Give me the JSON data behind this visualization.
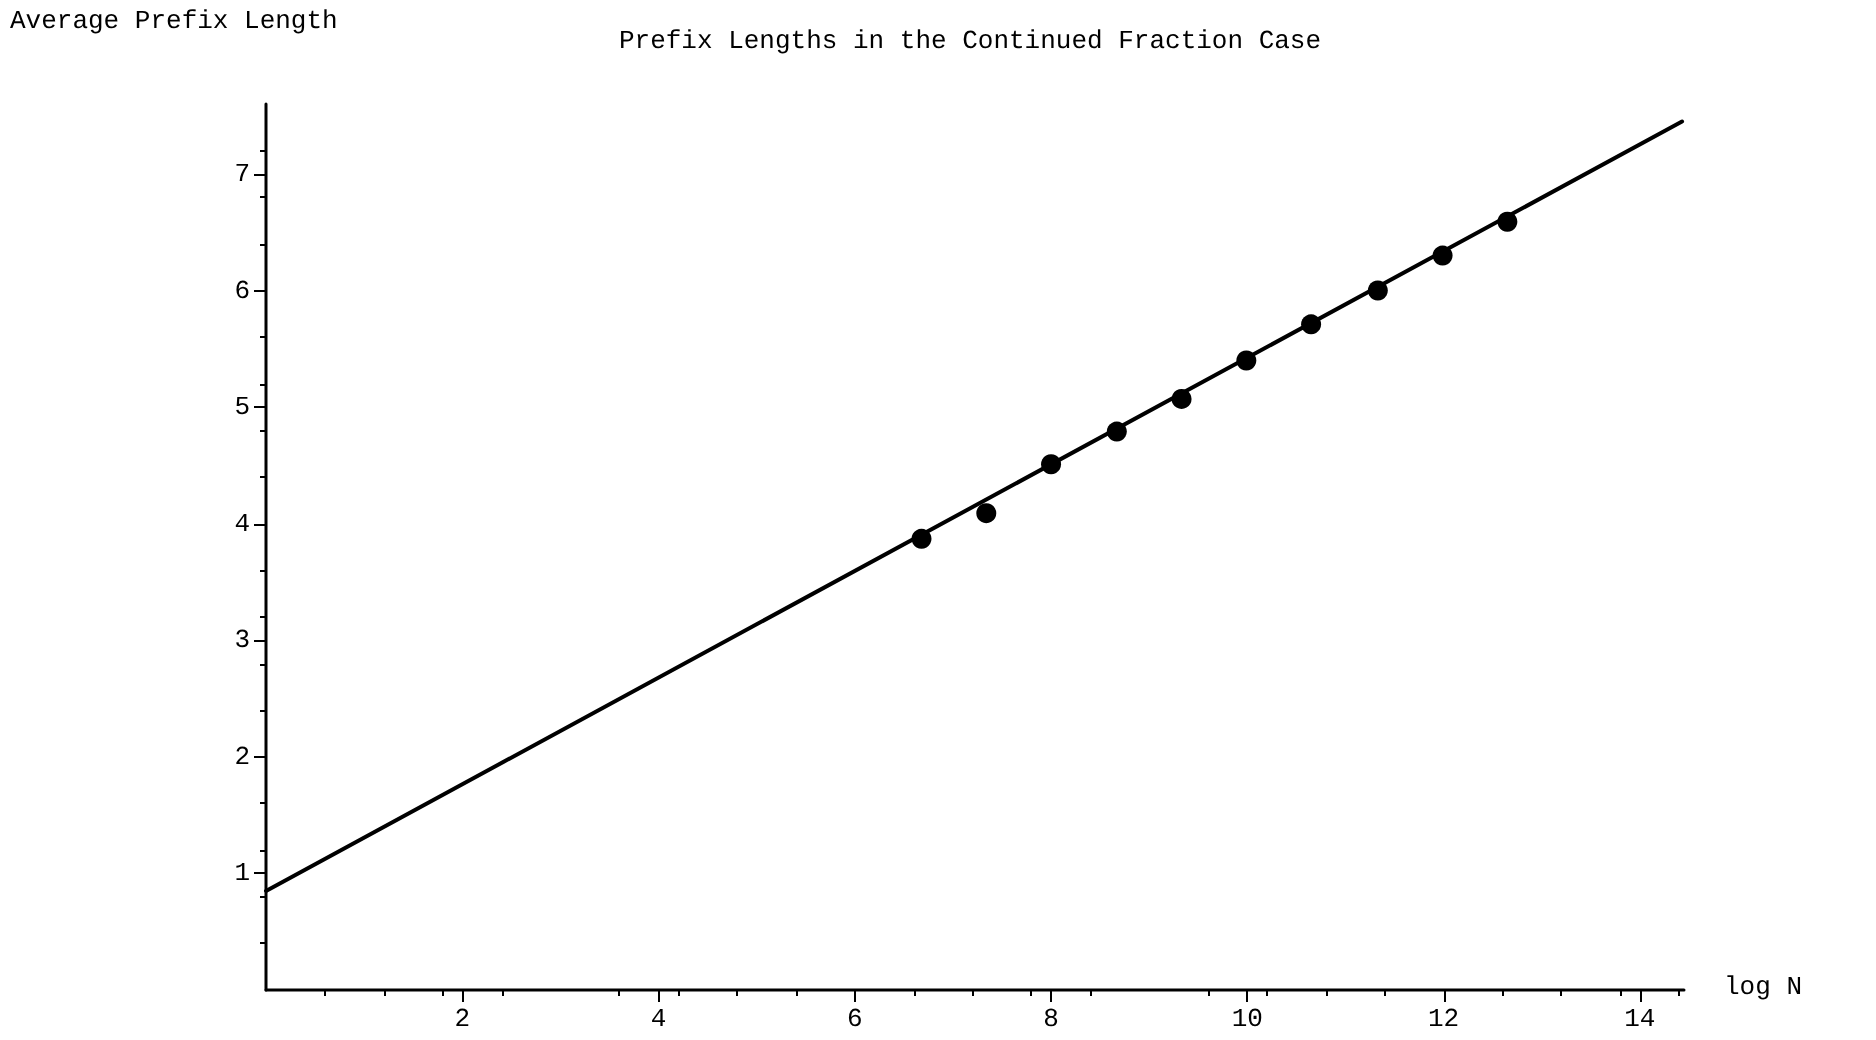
{
  "chart_data": {
    "type": "scatter",
    "title": "Prefix Lengths in the Continued Fraction Case",
    "xlabel": "log N",
    "ylabel": "Average Prefix Length",
    "xlim": [
      0,
      14.45
    ],
    "ylim": [
      0,
      7.6
    ],
    "xticks": [
      2,
      4,
      6,
      8,
      10,
      12,
      14
    ],
    "yticks": [
      1,
      2,
      3,
      4,
      5,
      6,
      7
    ],
    "grid": false,
    "series": [
      {
        "type": "line",
        "color": "#000000",
        "marker": "none",
        "line_style": "solid",
        "x": [
          0,
          14.43
        ],
        "values": [
          0.85,
          7.45
        ]
      },
      {
        "color": "#000000",
        "marker": "circle",
        "x": [
          6.68,
          7.34,
          8.0,
          8.67,
          9.33,
          9.99,
          10.65,
          11.33,
          11.99,
          12.65
        ],
        "values": [
          3.87,
          4.09,
          4.51,
          4.79,
          5.07,
          5.4,
          5.71,
          6.0,
          6.3,
          6.59
        ]
      }
    ]
  }
}
